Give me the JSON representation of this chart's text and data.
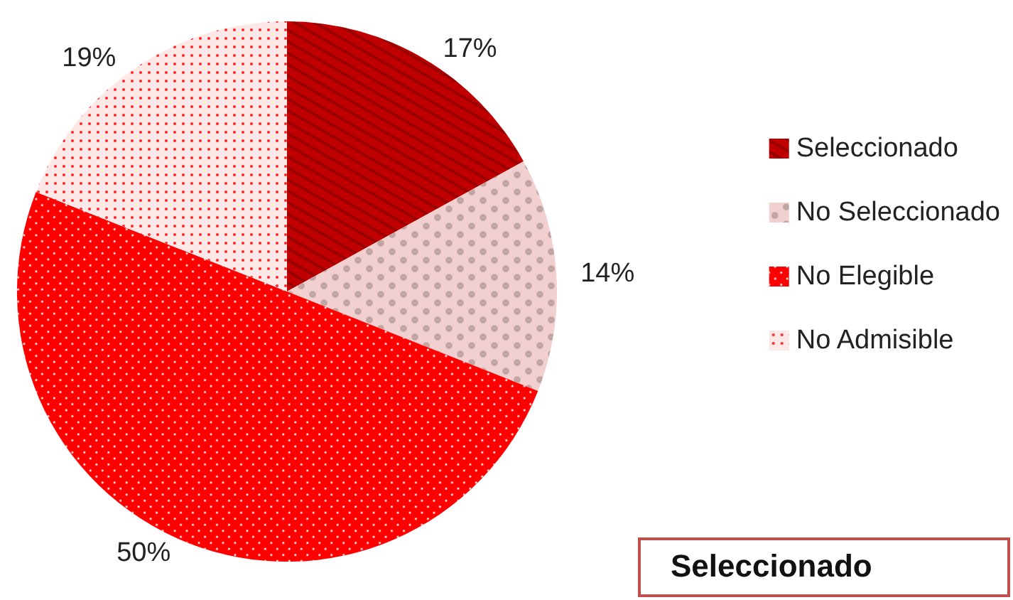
{
  "chart_data": {
    "type": "pie",
    "categories": [
      "Seleccionado",
      "No Seleccionado",
      "No Elegible",
      "No Admisible"
    ],
    "values": [
      17,
      14,
      50,
      19
    ],
    "value_labels": [
      "17%",
      "14%",
      "50%",
      "19%"
    ],
    "colors": [
      "#c00000",
      "#f2d0d0",
      "#ff0000",
      "#fde8e8"
    ],
    "legend": "right",
    "annotations": [
      "Seleccionado"
    ]
  }
}
